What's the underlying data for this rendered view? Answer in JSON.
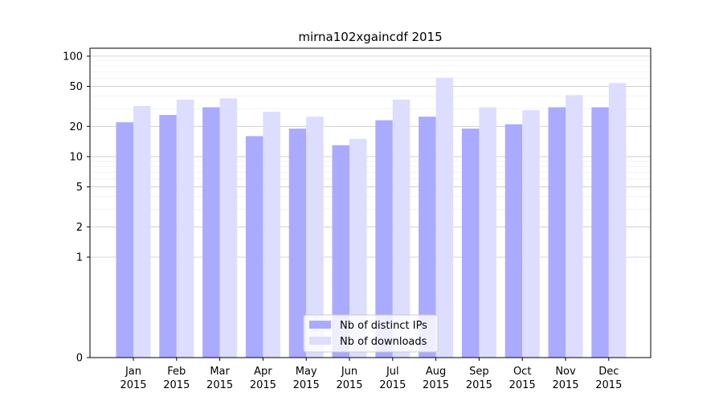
{
  "chart_data": {
    "type": "bar",
    "title": "mirna102xgaincdf 2015",
    "xlabel": "",
    "ylabel": "",
    "y_scale": "symlog",
    "ylim": [
      0,
      120
    ],
    "y_ticks": [
      0,
      1,
      2,
      5,
      10,
      20,
      50,
      100
    ],
    "y_tick_labels": [
      "0",
      "1",
      "2",
      "5",
      "10",
      "20",
      "50",
      "100"
    ],
    "categories": [
      [
        "Jan",
        "2015"
      ],
      [
        "Feb",
        "2015"
      ],
      [
        "Mar",
        "2015"
      ],
      [
        "Apr",
        "2015"
      ],
      [
        "May",
        "2015"
      ],
      [
        "Jun",
        "2015"
      ],
      [
        "Jul",
        "2015"
      ],
      [
        "Aug",
        "2015"
      ],
      [
        "Sep",
        "2015"
      ],
      [
        "Oct",
        "2015"
      ],
      [
        "Nov",
        "2015"
      ],
      [
        "Dec",
        "2015"
      ]
    ],
    "series": [
      {
        "name": "Nb of distinct IPs",
        "color": "#aaaaff",
        "values": [
          22,
          26,
          31,
          16,
          19,
          13,
          23,
          25,
          19,
          21,
          31,
          31
        ]
      },
      {
        "name": "Nb of downloads",
        "color": "#ddddff",
        "values": [
          32,
          37,
          38,
          28,
          25,
          15,
          37,
          61,
          31,
          29,
          41,
          54
        ]
      }
    ],
    "grid": true,
    "legend_position": "lower-center"
  }
}
